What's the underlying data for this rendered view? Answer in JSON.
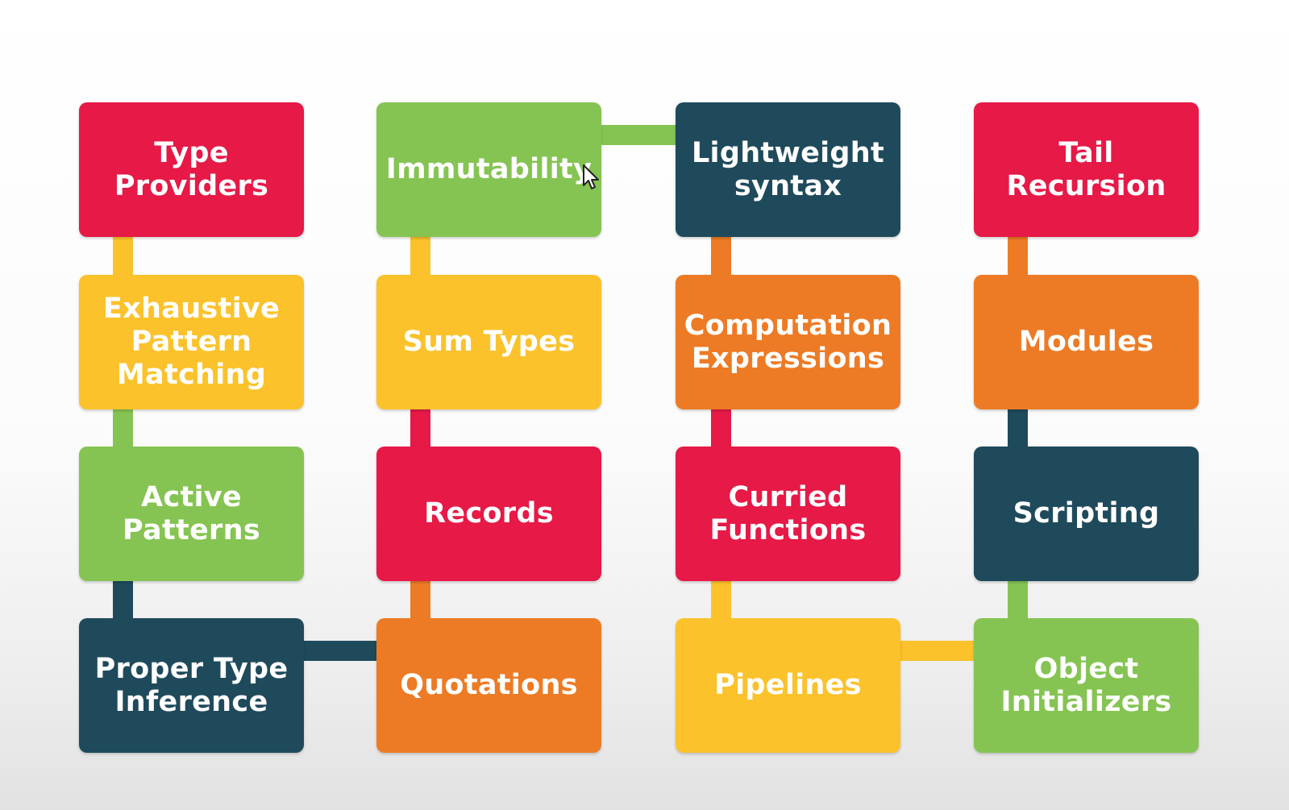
{
  "colors": {
    "red": "#e61947",
    "green": "#85c452",
    "navy": "#1f4a5c",
    "yellow": "#fbc22c",
    "orange": "#ed7b25"
  },
  "columns": [
    {
      "boxes": [
        {
          "label": "Type\nProviders",
          "color": "red"
        },
        {
          "label": "Exhaustive\nPattern\nMatching",
          "color": "yellow"
        },
        {
          "label": "Active\nPatterns",
          "color": "green"
        },
        {
          "label": "Proper Type\nInference",
          "color": "navy"
        }
      ]
    },
    {
      "boxes": [
        {
          "label": "Immutability",
          "color": "green"
        },
        {
          "label": "Sum Types",
          "color": "yellow"
        },
        {
          "label": "Records",
          "color": "red"
        },
        {
          "label": "Quotations",
          "color": "orange"
        }
      ]
    },
    {
      "boxes": [
        {
          "label": "Lightweight\nsyntax",
          "color": "navy"
        },
        {
          "label": "Computation\nExpressions",
          "color": "orange"
        },
        {
          "label": "Curried\nFunctions",
          "color": "red"
        },
        {
          "label": "Pipelines",
          "color": "yellow"
        }
      ]
    },
    {
      "boxes": [
        {
          "label": "Tail Recursion",
          "color": "red"
        },
        {
          "label": "Modules",
          "color": "orange"
        },
        {
          "label": "Scripting",
          "color": "navy"
        },
        {
          "label": "Object\nInitializers",
          "color": "green"
        }
      ]
    }
  ]
}
